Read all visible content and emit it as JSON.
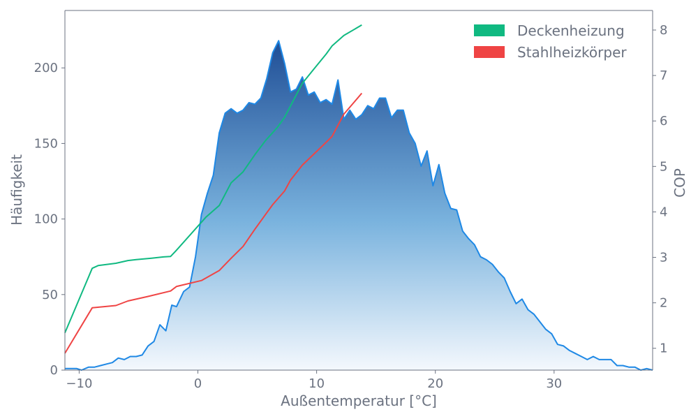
{
  "chart_data": {
    "type": "area",
    "title": "",
    "xlabel": "Außentemperatur [°C]",
    "ylabel_left": "Häufigkeit",
    "ylabel_right": "COP",
    "xlim": [
      -11.2,
      38.3
    ],
    "ylim_left": [
      0,
      238
    ],
    "ylim_right": [
      0.52,
      8.43
    ],
    "x_ticks": [
      -10,
      0,
      10,
      20,
      30
    ],
    "y_ticks_left": [
      0,
      50,
      100,
      150,
      200
    ],
    "y_ticks_right": [
      1,
      2,
      3,
      4,
      5,
      6,
      7,
      8
    ],
    "grid": false,
    "legend_position": "top-right",
    "legend": [
      "Deckenheizung",
      "Stahlheizkörper"
    ],
    "colors": {
      "area_line": "#1e88e5",
      "area_top": "#1f4e96",
      "area_bottom": "#f4f8fd",
      "deckenheizung": "#10b981",
      "stahlheizkoerper": "#ef4444",
      "axis": "#6b7280"
    },
    "frequency": {
      "name": "Häufigkeit",
      "x": [
        -11.2,
        -10.7,
        -10.2,
        -9.8,
        -9.2,
        -8.7,
        -8.2,
        -7.7,
        -7.2,
        -6.7,
        -6.2,
        -5.7,
        -5.2,
        -4.7,
        -4.2,
        -3.7,
        -3.2,
        -2.7,
        -2.2,
        -1.8,
        -1.2,
        -0.7,
        -0.2,
        0.3,
        0.8,
        1.3,
        1.8,
        2.3,
        2.8,
        3.3,
        3.8,
        4.3,
        4.8,
        5.3,
        5.8,
        6.3,
        6.8,
        7.3,
        7.8,
        8.3,
        8.8,
        9.3,
        9.8,
        10.3,
        10.8,
        11.3,
        11.8,
        12.3,
        12.8,
        13.3,
        13.8,
        14.3,
        14.8,
        15.3,
        15.8,
        16.3,
        16.8,
        17.3,
        17.8,
        18.3,
        18.8,
        19.3,
        19.8,
        20.3,
        20.8,
        21.3,
        21.8,
        22.3,
        22.8,
        23.3,
        23.8,
        24.3,
        24.8,
        25.3,
        25.8,
        26.3,
        26.8,
        27.3,
        27.8,
        28.3,
        28.8,
        29.3,
        29.8,
        30.3,
        30.8,
        31.3,
        31.8,
        32.3,
        32.8,
        33.3,
        33.8,
        34.3,
        34.8,
        35.3,
        35.8,
        36.3,
        36.8,
        37.3,
        37.8,
        38.3
      ],
      "values": [
        1,
        1,
        1,
        0,
        2,
        2,
        3,
        4,
        5,
        8,
        7,
        9,
        9,
        10,
        16,
        19,
        30,
        26,
        43,
        42,
        52,
        55,
        75,
        103,
        117,
        129,
        157,
        170,
        173,
        170,
        172,
        177,
        176,
        180,
        193,
        210,
        218,
        203,
        184,
        186,
        194,
        182,
        184,
        177,
        179,
        176,
        192,
        166,
        172,
        166,
        169,
        175,
        173,
        180,
        180,
        167,
        172,
        172,
        157,
        150,
        135,
        145,
        122,
        136,
        117,
        107,
        106,
        92,
        87,
        83,
        75,
        73,
        70,
        65,
        61,
        52,
        44,
        47,
        40,
        37,
        32,
        27,
        24,
        17,
        16,
        13,
        11,
        9,
        7,
        9,
        7,
        7,
        7,
        3,
        3,
        2,
        2,
        0,
        1,
        0
      ]
    },
    "series": [
      {
        "name": "Deckenheizung",
        "x": [
          -11.2,
          -8.9,
          -8.4,
          -6.9,
          -5.9,
          -5.2,
          -3.9,
          -2.9,
          -2.3,
          -1.9,
          0.7,
          1.8,
          2.8,
          3.8,
          4.8,
          5.7,
          6.7,
          7.3,
          8.8,
          9.8,
          10.8,
          11.3,
          12.3,
          13.8
        ],
        "values": [
          1.34,
          2.76,
          2.82,
          2.87,
          2.93,
          2.95,
          2.98,
          3.01,
          3.02,
          3.13,
          3.89,
          4.14,
          4.64,
          4.88,
          5.26,
          5.57,
          5.86,
          6.08,
          6.83,
          7.15,
          7.47,
          7.65,
          7.88,
          8.11
        ]
      },
      {
        "name": "Stahlheizkörper",
        "x": [
          -11.2,
          -8.9,
          -6.9,
          -5.9,
          -4.2,
          -2.3,
          -1.8,
          0.3,
          1.8,
          2.8,
          3.8,
          4.8,
          5.3,
          6.3,
          7.3,
          7.8,
          8.8,
          9.8,
          10.8,
          11.3,
          12.3,
          13.8
        ],
        "values": [
          0.89,
          1.89,
          1.94,
          2.04,
          2.14,
          2.26,
          2.36,
          2.49,
          2.71,
          2.98,
          3.24,
          3.62,
          3.8,
          4.16,
          4.46,
          4.7,
          5.03,
          5.28,
          5.53,
          5.66,
          6.15,
          6.61
        ]
      }
    ]
  }
}
